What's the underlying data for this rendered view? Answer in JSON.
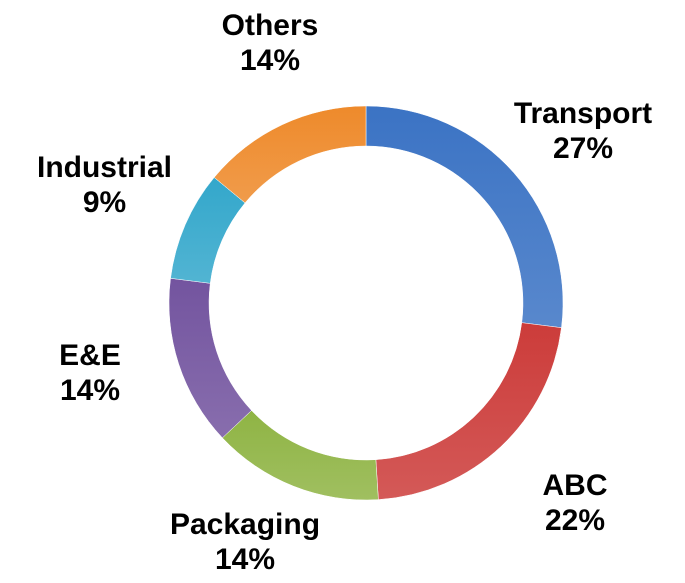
{
  "chart_data": {
    "type": "pie",
    "variant": "donut",
    "slices": [
      {
        "name": "Transport",
        "value": 27,
        "label": "27%",
        "color": "#3b73c4"
      },
      {
        "name": "ABC",
        "value": 22,
        "label": "22%",
        "color": "#cc3c3a"
      },
      {
        "name": "Packaging",
        "value": 14,
        "label": "14%",
        "color": "#8fb444"
      },
      {
        "name": "E&E",
        "value": 14,
        "label": "14%",
        "color": "#73549f"
      },
      {
        "name": "Industrial",
        "value": 9,
        "label": "9%",
        "color": "#33a7cb"
      },
      {
        "name": "Others",
        "value": 14,
        "label": "14%",
        "color": "#ee8a2b"
      }
    ],
    "start": "12 o'clock",
    "direction": "clockwise",
    "legend": "none",
    "data_labels": "outside"
  }
}
